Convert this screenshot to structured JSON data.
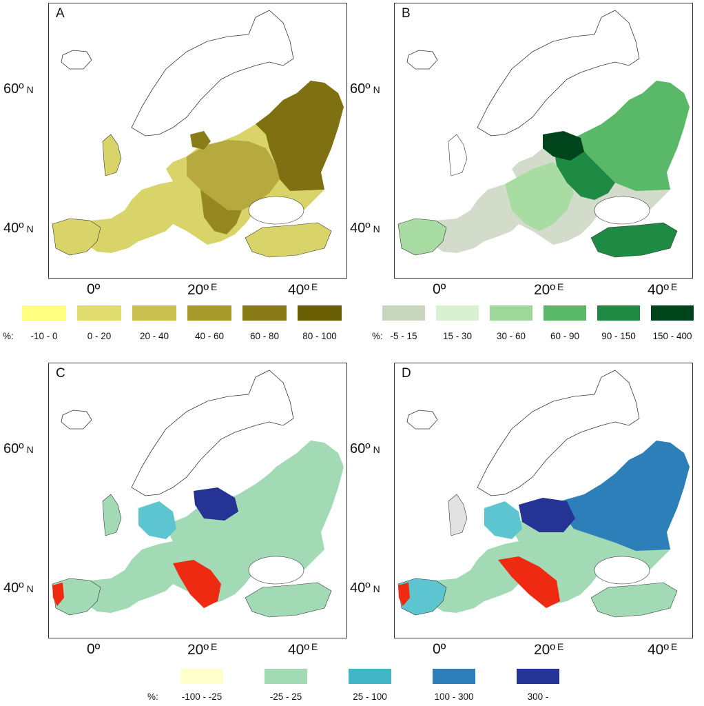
{
  "panels": {
    "A": {
      "letter": "A",
      "legend": {
        "prefix": "%:",
        "items": [
          {
            "label": "-10 - 0",
            "color": "#ffff80"
          },
          {
            "label": "0 - 20",
            "color": "#e0dd6e"
          },
          {
            "label": "20 - 40",
            "color": "#c9c04f"
          },
          {
            "label": "40 - 60",
            "color": "#a89a2a"
          },
          {
            "label": "60 - 80",
            "color": "#887a17"
          },
          {
            "label": "80 - 100",
            "color": "#6a5e05"
          }
        ]
      }
    },
    "B": {
      "letter": "B",
      "legend": {
        "prefix": "%:",
        "items": [
          {
            "label": "-5 - 15",
            "color": "#c8d6c0"
          },
          {
            "label": "15 - 30",
            "color": "#d9f0d3"
          },
          {
            "label": "30 - 60",
            "color": "#9fd89b"
          },
          {
            "label": "60 - 90",
            "color": "#5ab869"
          },
          {
            "label": "90 - 150",
            "color": "#1f8a44"
          },
          {
            "label": "150 - 400",
            "color": "#00441b"
          }
        ]
      }
    },
    "C": {
      "letter": "C"
    },
    "D": {
      "letter": "D"
    }
  },
  "shared_legend": {
    "prefix": "%:",
    "items": [
      {
        "label": "-100 - -25",
        "color": "#ffffcc"
      },
      {
        "label": "-25 - 25",
        "color": "#a1dab4"
      },
      {
        "label": "25 - 100",
        "color": "#41b6c4"
      },
      {
        "label": "100 - 300",
        "color": "#2c7fb8"
      },
      {
        "label": "300 -",
        "color": "#253494"
      }
    ]
  },
  "axes": {
    "lat_labels": [
      "60º",
      "40º"
    ],
    "lat_hemisphere": "N",
    "lon_labels": [
      "0º",
      "20º",
      "40º"
    ],
    "lon_hemisphere": "E"
  },
  "region_colors": {
    "A": {
      "europe_base": "#d8d46a",
      "east": "#7f7112",
      "central": "#b6a93d",
      "balkan": "#968820",
      "baltic": "#8a7c18"
    },
    "B": {
      "west": "#d3dccb",
      "central": "#a8dca2",
      "east": "#5ab869",
      "core": "#1f8a44",
      "north": "#00441b"
    },
    "C": {
      "base": "#a1dab4",
      "germany": "#5cc5cf",
      "belarus": "#253494",
      "balkan_red": "#ee2a12"
    },
    "D": {
      "base": "#a1dab4",
      "germany": "#5cc5cf",
      "belarus": "#253494",
      "east": "#2c7fb8",
      "balkan_red": "#ee2a12",
      "grey": "#e2e2e2"
    }
  }
}
